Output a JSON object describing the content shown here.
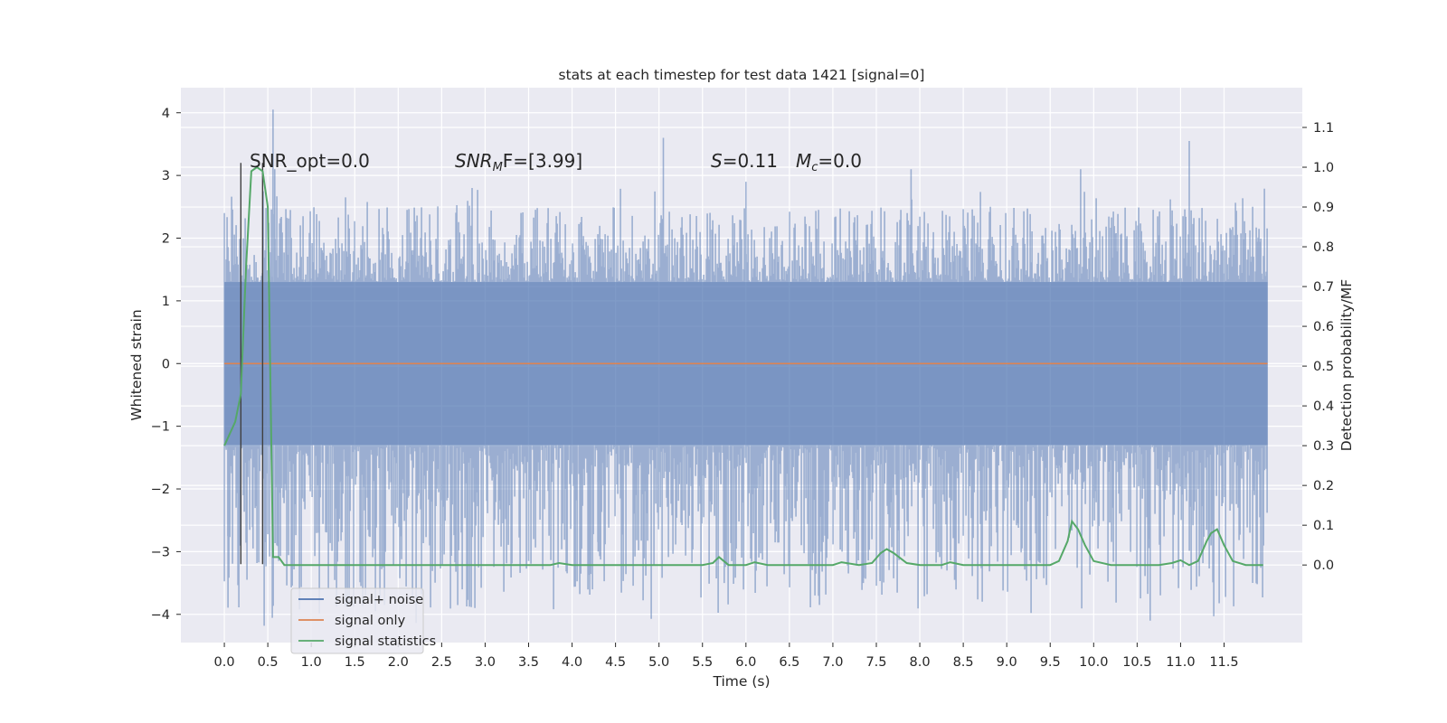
{
  "chart_data": {
    "type": "line",
    "title": "stats at each timestep for test data 1421 [signal=0]",
    "xlabel": "Time (s)",
    "ylabel_left": "Whitened strain",
    "ylabel_right": "Detection probability/MF",
    "xlim": [
      -0.5,
      12.4
    ],
    "ylim_left": [
      -4.45,
      4.4
    ],
    "ylim_right": [
      -0.195,
      1.2
    ],
    "x_ticks": [
      "0.0",
      "0.5",
      "1.0",
      "1.5",
      "2.0",
      "2.5",
      "3.0",
      "3.5",
      "4.0",
      "4.5",
      "5.0",
      "5.5",
      "6.0",
      "6.5",
      "7.0",
      "7.5",
      "8.0",
      "8.5",
      "9.0",
      "9.5",
      "10.0",
      "10.5",
      "11.0",
      "11.5"
    ],
    "y_ticks_left": [
      "−4",
      "−3",
      "−2",
      "−1",
      "0",
      "1",
      "2",
      "3",
      "4"
    ],
    "y_ticks_right": [
      "0.0",
      "0.1",
      "0.2",
      "0.3",
      "0.4",
      "0.5",
      "0.6",
      "0.7",
      "0.8",
      "0.9",
      "1.0",
      "1.1"
    ],
    "grid": true,
    "legend_position": "lower-left",
    "annotations": {
      "snr_opt": "SNR_opt=0.0",
      "snr_mf": "SNR",
      "snr_mf_sub": "M",
      "snr_mf_rest": "F=[3.99]",
      "s_sym": "S",
      "s_val": "=0.11",
      "mc_sym": "M",
      "mc_sub": "c",
      "mc_val": "=0.0"
    },
    "vertical_markers": [
      0.19,
      0.44
    ],
    "series": [
      {
        "name": "signal+ noise",
        "axis": "left",
        "color": "#4c72b0",
        "x_range": [
          0.0,
          12.0
        ],
        "core_band": [
          -1.3,
          1.3
        ],
        "typical_envelope": [
          -2.4,
          2.4
        ],
        "spikes": [
          [
            0.56,
            4.05
          ],
          [
            0.0,
            2.4
          ],
          [
            0.04,
            -2.75
          ],
          [
            0.33,
            -2.95
          ],
          [
            0.58,
            3.1
          ],
          [
            1.83,
            -3.25
          ],
          [
            2.85,
            2.8
          ],
          [
            3.5,
            -3.15
          ],
          [
            4.1,
            -3.35
          ],
          [
            4.3,
            -3.0
          ],
          [
            5.05,
            3.6
          ],
          [
            5.75,
            -3.5
          ],
          [
            6.0,
            2.9
          ],
          [
            7.35,
            -3.5
          ],
          [
            7.9,
            3.1
          ],
          [
            8.4,
            -3.45
          ],
          [
            9.85,
            3.1
          ],
          [
            10.05,
            -2.95
          ],
          [
            10.65,
            -4.1
          ],
          [
            11.1,
            3.55
          ],
          [
            11.35,
            -2.9
          ]
        ]
      },
      {
        "name": "signal only",
        "axis": "left",
        "color": "#dd8452",
        "x": [
          0.0,
          12.0
        ],
        "y": [
          0.0,
          0.0
        ]
      },
      {
        "name": "signal statistics",
        "axis": "right",
        "color": "#55a868",
        "x": [
          0.0,
          0.125,
          0.19,
          0.25,
          0.31,
          0.375,
          0.44,
          0.5,
          0.56,
          0.625,
          0.69,
          1.0,
          2.0,
          3.0,
          3.5,
          3.75,
          3.85,
          4.0,
          4.5,
          5.0,
          5.5,
          5.62,
          5.69,
          5.8,
          6.0,
          6.1,
          6.25,
          6.5,
          7.0,
          7.1,
          7.3,
          7.45,
          7.55,
          7.62,
          7.7,
          7.85,
          8.0,
          8.25,
          8.35,
          8.5,
          9.0,
          9.5,
          9.6,
          9.7,
          9.75,
          9.82,
          9.9,
          10.0,
          10.2,
          10.5,
          10.75,
          10.9,
          11.0,
          11.1,
          11.2,
          11.3,
          11.35,
          11.42,
          11.5,
          11.6,
          11.75,
          11.95
        ],
        "y": [
          0.3,
          0.36,
          0.43,
          0.75,
          0.99,
          1.0,
          0.99,
          0.9,
          0.02,
          0.02,
          0.0,
          0.0,
          0.0,
          0.0,
          0.0,
          0.0,
          0.005,
          0.0,
          0.0,
          0.0,
          0.0,
          0.005,
          0.02,
          0.0,
          0.0,
          0.007,
          0.0,
          0.0,
          0.0,
          0.007,
          0.0,
          0.005,
          0.03,
          0.04,
          0.03,
          0.005,
          0.0,
          0.0,
          0.007,
          0.0,
          0.0,
          0.0,
          0.01,
          0.06,
          0.11,
          0.09,
          0.05,
          0.01,
          0.0,
          0.0,
          0.0,
          0.005,
          0.012,
          0.0,
          0.01,
          0.06,
          0.08,
          0.09,
          0.05,
          0.01,
          0.0,
          0.0
        ]
      }
    ]
  }
}
